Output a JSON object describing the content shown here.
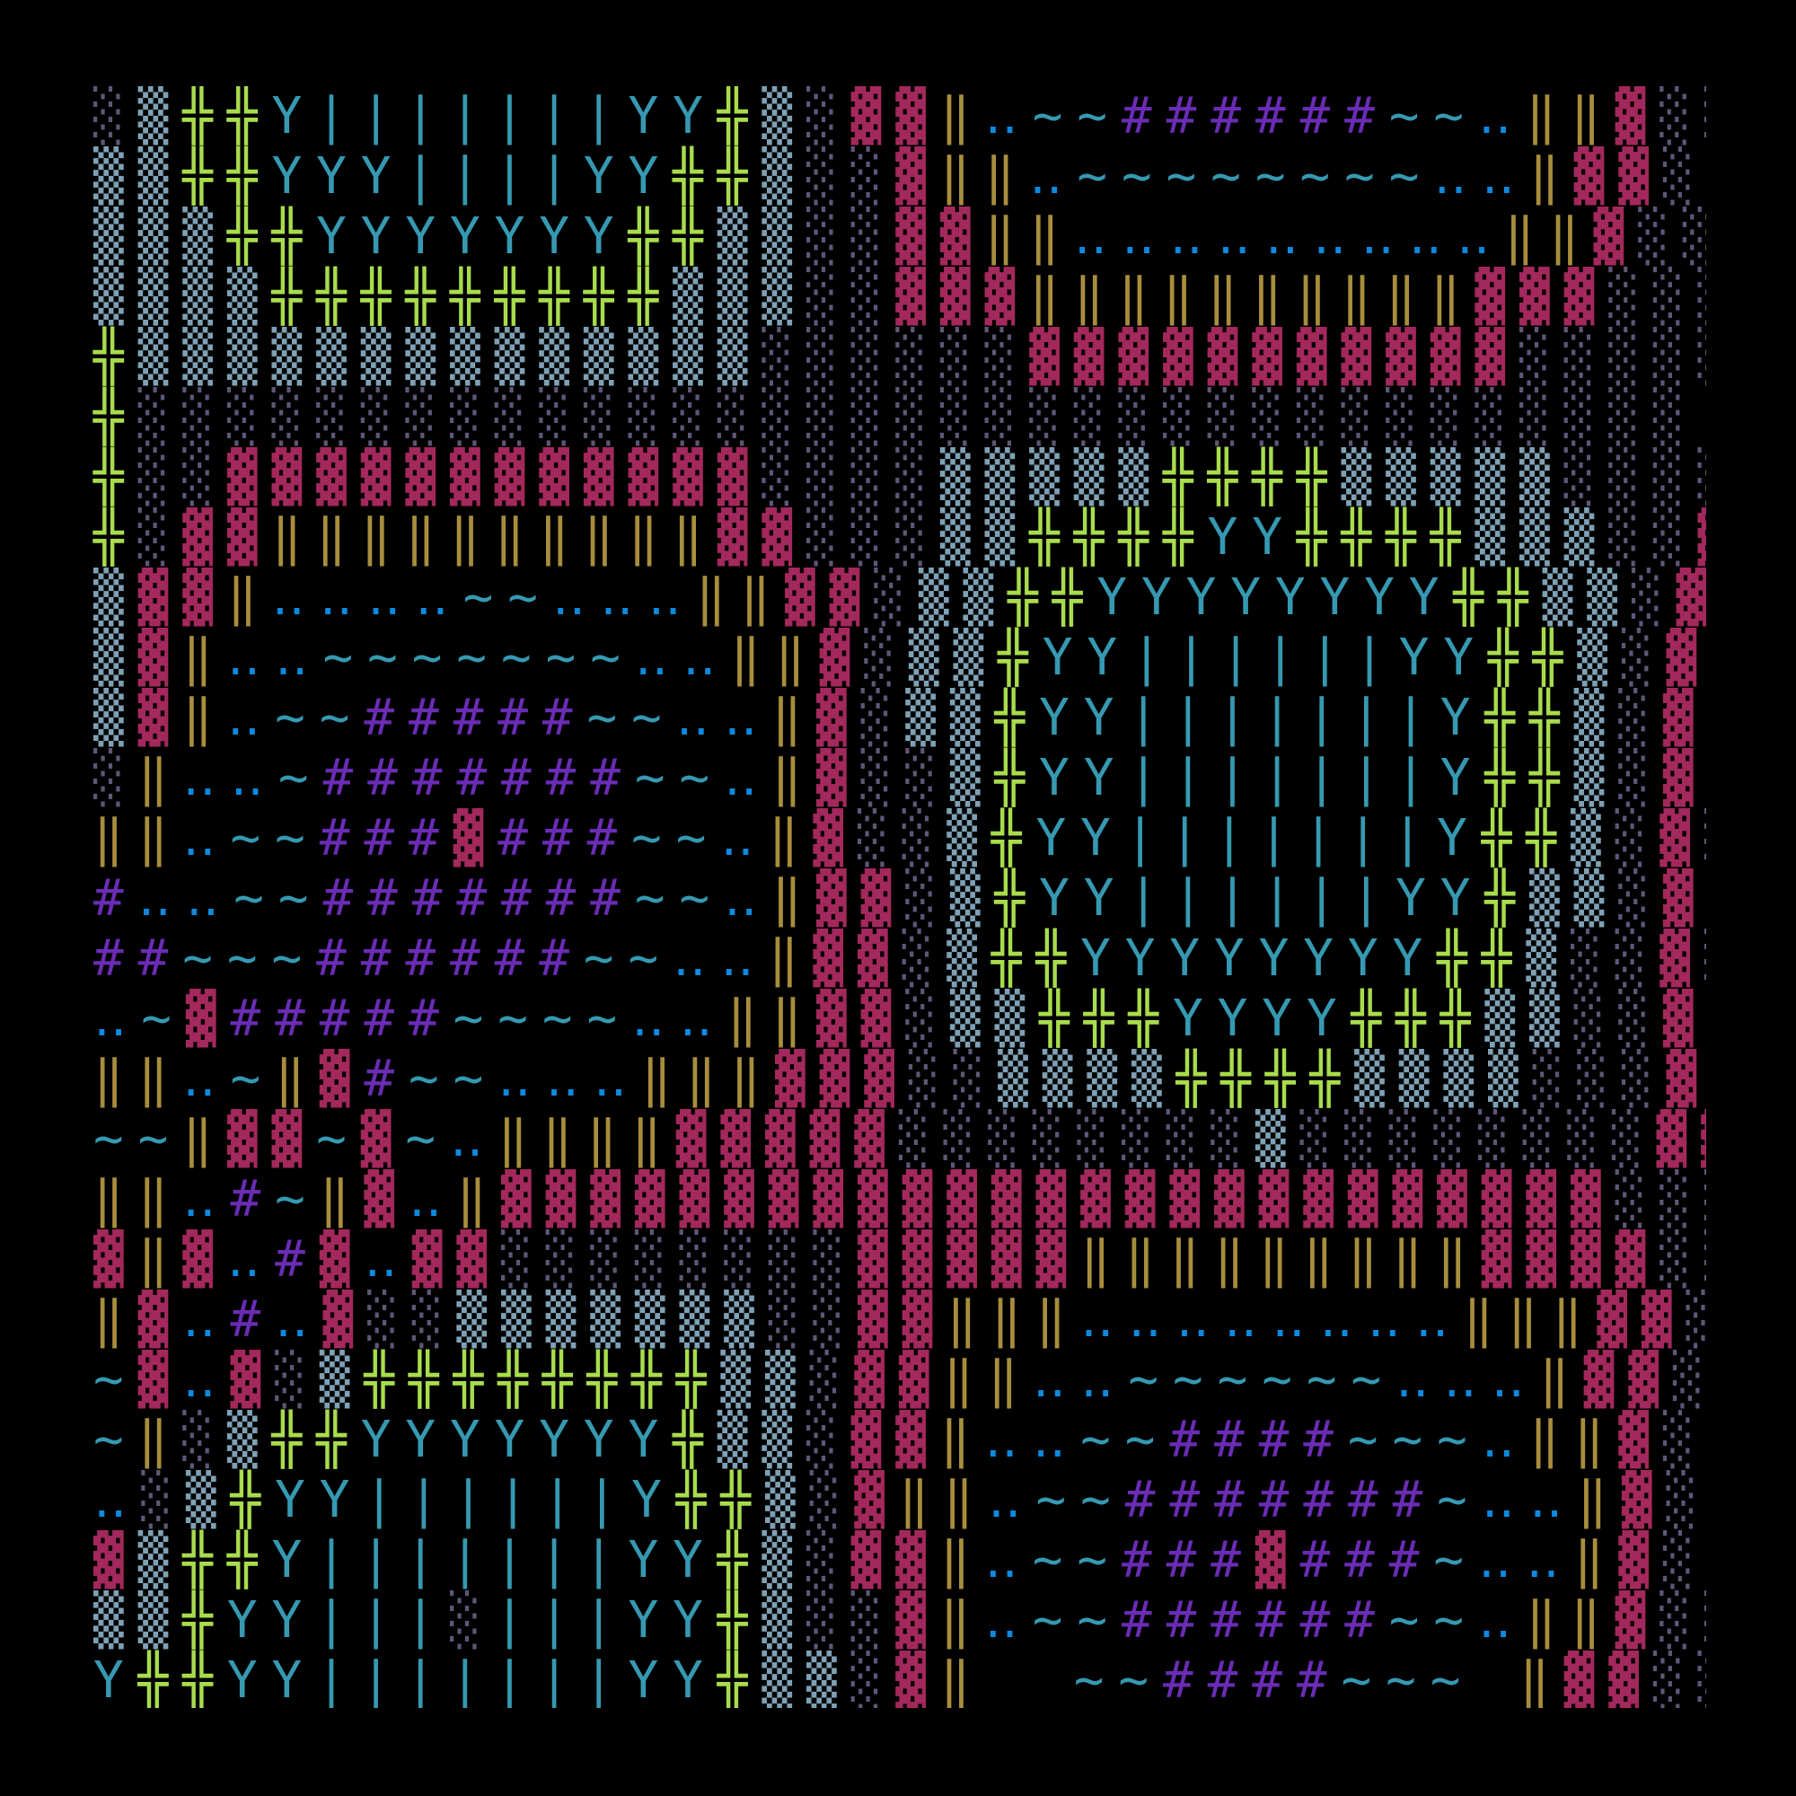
{
  "background": "#000000",
  "art": {
    "rows": [
      "░▒╬╬Y|||||||YY╬▒░▓▓‖‥~~######~~‥‖‖▓░░",
      "▒▒╬╬YYY||||YY╬╬▒░░▓‖‖‥~~~~~~~~‥‥‖▓▓░░",
      "▒▒▒╬╬YYYYYYY╬╬▒▒░░▓▓‖‖‥‥‥‥‥‥‥‥‥‖‖▓░░░",
      "▒▒▒▒╬╬╬╬╬╬╬╬╬▒▒▒░░▓▓▓‖‖‖‖‖‖‖‖‖‖▓▓▓░░░",
      "╬▒▒▒▒▒▒▒▒▒▒▒▒▒▒░░░░░░▓▓▓▓▓▓▓▓▓▓▓░░░░░",
      "╬░░░░░░░░░░░░░░░░░░░░░░░░░░░░░░░░░░░",
      "╬░░▓▓▓▓▓▓▓▓▓▓▓▓░░░░▒▒▒▒▒╬╬╬╬▒▒▒▒▒░░░░",
      "╬░▓▓‖‖‖‖‖‖‖‖‖‖▓▓░░░▒▒╬╬╬╬YY╬╬╬╬▒▒▒░░▓",
      "▒▓▓‖‥‥‥‥~~‥‥‥‖‖▓▓░▒▒╬╬YYYYYYYY╬╬▒▒░▓▓",
      "▒▓‖‥‥~~~~~~~‥‥‖‖▓░▒▒╬YY||||||YY╬╬▒░▓▓",
      "▒▓‖‥~~#####~~‥‥‖▓░▒▒╬YY|||||||Y╬╬▒░▓░",
      "░‖‥‥~#######~~‥‖▓░░▒╬YY|||||||Y╬╬▒░▓░",
      "‖‖‥~~###▓###~~‥‖▓░░▒╬YY|||||||Y╬╬▒░▓░",
      "#‥‥~~#######~~‥‖▓▓░▒╬YY||||||YY╬▒▒░▓░",
      "##~~~######~~‥‥‖▓▓░▒╬╬YYYYYYYY╬╬▒░░▓░",
      "‥~▓#####~~~~‥‥‖‖▓▓░▒▒╬╬╬YYYY╬╬╬▒▒░░▓▓",
      "‖‖‥~‖▓#~~‥‥‥‖‖‖▓▓▓░░▒▒▒▒╬╬╬╬▒▒▒▒░░░▓▓",
      "~~‖▓▓~▓~‥‖‖‖‖▓▓▓▓▓░░░░░░░░▒░░░░░░░░▓▓",
      "‖‖‥#~‖▓‥‖▓▓▓▓▓▓▓▓▓▓▓▓▓▓▓▓▓▓▓▓▓▓▓▓▓░░░",
      "▓‖▓‥#▓‥▓▓░░░░░░░░▓▓▓▓▓‖‖‖‖‖‖‖‖‖▓▓▓▓░░",
      "‖▓‥#‥▓░░▒▒▒▒▒▒▒░░▓▓‖‖‖‥‥‥‥‥‥‥‥‖‖‖▓▓░░",
      "~▓‥▓░▒╬╬╬╬╬╬╬╬▒▒░▓▓‖‖‥‥~~~~~~‥‥‥‖▓▓░░",
      "~‖░▒╬╬YYYYYYY╬▒▒░▓▓‖‥‥~~####~~~‥‖‖▓░░",
      "‥░▒╬YY||||||Y╬╬▒░▓‖‖‥~~#######~‥‥‖▓░░",
      "▓▒╬╬Y|||||||YY╬▒░▓▓‖‥~~###▓###~‥‥‖▓░░",
      "▒▒╬YY|||░|||YY╬▒░░▓‖‥~~######~~‥‖‖▓░░",
      "Y╬╬YY|||||||YY╬▒▒░▓‖  ~~####~~~ ‖▓▓░░"
    ],
    "colors": {
      "░": "#5f5678",
      "▒": "#7fa1b5",
      "▓": "#a3285c",
      "╬": "#a9dc4c",
      "Y": "#3699b2",
      "|": "#3699b2",
      "‖": "#a88e3c",
      "‥": "#0b8ae0",
      "~": "#3699b2",
      "#": "#6a2cb5"
    },
    "glyph_names": {
      "░": "light-shade",
      "▒": "medium-shade",
      "▓": "dark-shade-block",
      "╬": "double-cross",
      "Y": "letter-y",
      "|": "vertical-bar",
      "‖": "double-bar",
      "‥": "two-dot-leader",
      "~": "tilde",
      "#": "hash",
      " ": "blank"
    }
  }
}
